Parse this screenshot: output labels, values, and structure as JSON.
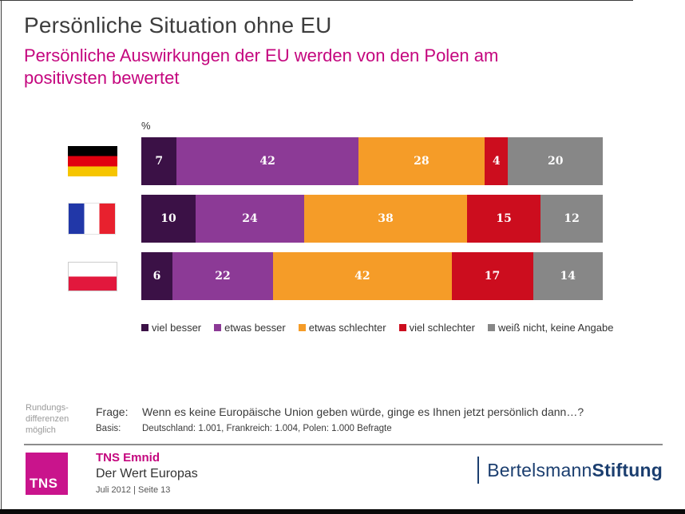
{
  "header": {
    "title": "Persönliche Situation ohne EU",
    "subtitle": "Persönliche Auswirkungen der EU werden von den Polen am positivsten bewertet"
  },
  "chart_data": {
    "type": "bar",
    "stacked": true,
    "orientation": "horizontal",
    "unit_label": "%",
    "categories": [
      "Deutschland",
      "Frankreich",
      "Polen"
    ],
    "series": [
      {
        "name": "viel besser",
        "color": "#3b1146",
        "values": [
          7,
          10,
          6
        ]
      },
      {
        "name": "etwas besser",
        "color": "#8c3a96",
        "values": [
          42,
          24,
          22
        ]
      },
      {
        "name": "etwas schlechter",
        "color": "#f59c28",
        "values": [
          28,
          38,
          42
        ]
      },
      {
        "name": "viel schlechter",
        "color": "#cc0d1e",
        "values": [
          4,
          15,
          17
        ]
      },
      {
        "name": "weiß nicht, keine Angabe",
        "color": "#878787",
        "values": [
          20,
          12,
          14
        ]
      }
    ],
    "legend_position": "bottom",
    "value_labels": "inside",
    "xlim": [
      0,
      100
    ]
  },
  "notes": {
    "rounding_lines": [
      "Rundungs-",
      "differenzen",
      "möglich"
    ],
    "frage_label": "Frage:",
    "frage_text": "Wenn es keine Europäische Union geben würde, ginge es Ihnen jetzt persönlich dann…?",
    "basis_label": "Basis:",
    "basis_text": "Deutschland: 1.001, Frankreich: 1.004, Polen: 1.000 Befragte"
  },
  "footer": {
    "logo_text": "TNS",
    "org": "TNS Emnid",
    "project": "Der Wert Europas",
    "date_page": "Juli 2012  |  Seite 13",
    "brand_regular": "Bertelsmann",
    "brand_bold": "Stiftung",
    "accent_magenta": "#c9148c",
    "brand_blue": "#1b3e6f"
  }
}
